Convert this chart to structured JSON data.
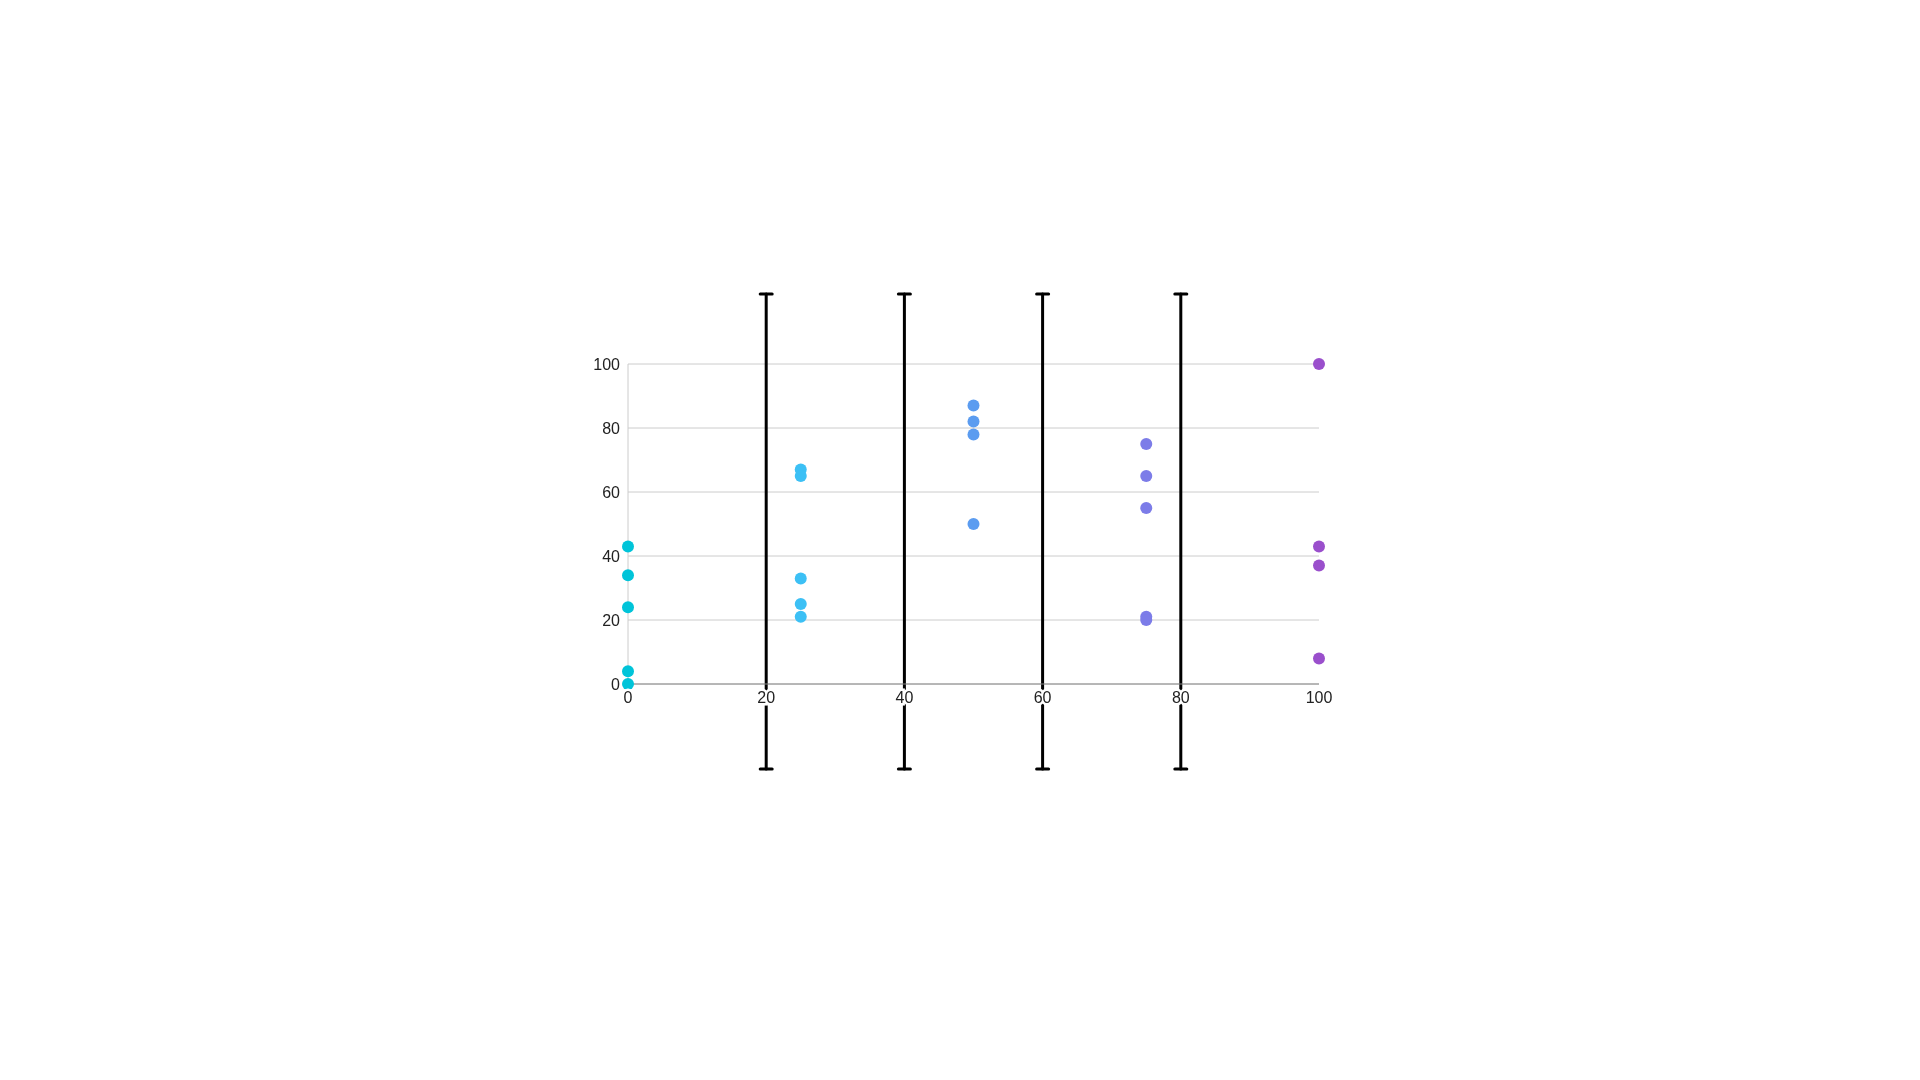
{
  "chart_data": {
    "type": "scatter",
    "xlim": [
      0,
      100
    ],
    "xticks": [
      0,
      20,
      40,
      60,
      80,
      100
    ],
    "ylim": [
      0,
      100
    ],
    "yticks": [
      0,
      20,
      40,
      60,
      80,
      100
    ],
    "grid": "y",
    "marker": "circle",
    "legend": false,
    "series": [
      {
        "color": "#00c4d9",
        "x": [
          0,
          0,
          0,
          0,
          0
        ],
        "values": [
          43,
          34,
          24,
          4,
          0
        ]
      },
      {
        "color": "#3cc0f5",
        "x": [
          25,
          25,
          25,
          25,
          25
        ],
        "values": [
          67,
          65,
          33,
          25,
          21
        ]
      },
      {
        "color": "#5b9cf0",
        "x": [
          50,
          50,
          50,
          50
        ],
        "values": [
          87,
          82,
          78,
          50
        ]
      },
      {
        "color": "#7c7ce8",
        "x": [
          75,
          75,
          75,
          75,
          75
        ],
        "values": [
          75,
          65,
          55,
          21,
          20
        ]
      },
      {
        "color": "#9a4fcc",
        "x": [
          100,
          100,
          100,
          100
        ],
        "values": [
          100,
          43,
          37,
          8
        ]
      }
    ],
    "ref_lines": [
      {
        "axis": "x",
        "value": 20,
        "color": "#000000"
      },
      {
        "axis": "x",
        "value": 40,
        "color": "#000000"
      },
      {
        "axis": "x",
        "value": 60,
        "color": "#000000"
      },
      {
        "axis": "x",
        "value": 80,
        "color": "#000000"
      }
    ]
  }
}
